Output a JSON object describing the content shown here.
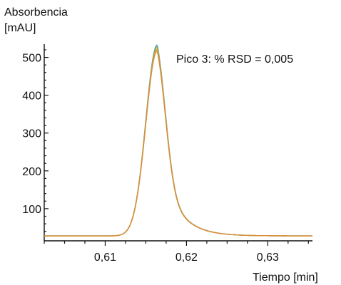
{
  "chart_data": {
    "type": "line",
    "ylabel_line1": "Absorbencia",
    "ylabel_line2": "[mAU]",
    "xlabel": "Tiempo [min]",
    "annotation": "Pico 3: % RSD = 0,005",
    "xlim": [
      0.6025,
      0.6355
    ],
    "ylim": [
      15,
      535
    ],
    "x_ticks": [
      0.61,
      0.62,
      0.63
    ],
    "x_tick_labels": [
      "0,61",
      "0,62",
      "0,63"
    ],
    "y_ticks": [
      100,
      200,
      300,
      400,
      500
    ],
    "y_tick_labels": [
      "100",
      "200",
      "300",
      "400",
      "500"
    ],
    "grid": false,
    "peak": {
      "retention_time": 0.6164,
      "baseline": 28,
      "sigma_left": 0.0014,
      "tail_tau": 0.0022
    },
    "series": [
      {
        "color": "#4aa3c8",
        "height": 533
      },
      {
        "color": "#8fae3a",
        "height": 528
      },
      {
        "color": "#e3a23a",
        "height": 522
      },
      {
        "color": "#d98c3a",
        "height": 517
      }
    ]
  }
}
